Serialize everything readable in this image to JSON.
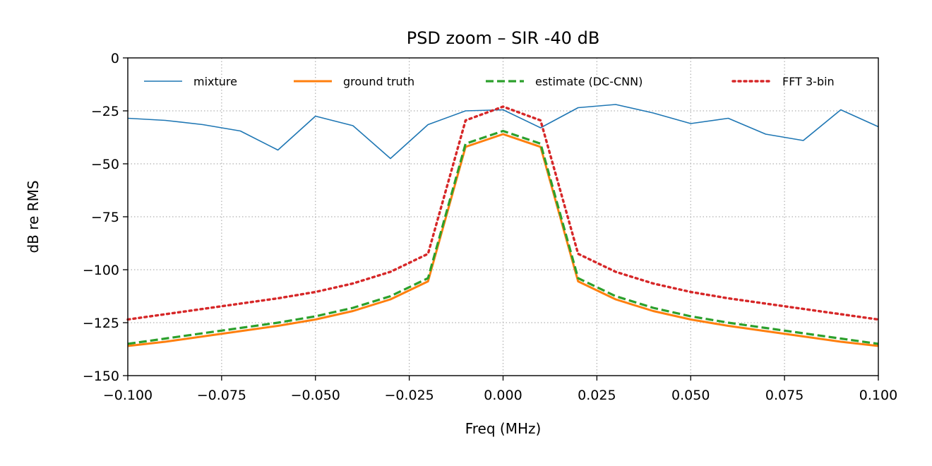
{
  "chart_data": {
    "type": "line",
    "title": "PSD zoom – SIR -40 dB",
    "xlabel": "Freq (MHz)",
    "ylabel": "dB re RMS",
    "xlim": [
      -0.1,
      0.1
    ],
    "ylim": [
      -150,
      0
    ],
    "x_ticks": [
      -0.1,
      -0.075,
      -0.05,
      -0.025,
      0.0,
      0.025,
      0.05,
      0.075,
      0.1
    ],
    "x_tick_labels": [
      "−0.100",
      "−0.075",
      "−0.050",
      "−0.025",
      "0.000",
      "0.025",
      "0.050",
      "0.075",
      "0.100"
    ],
    "y_ticks": [
      0,
      -25,
      -50,
      -75,
      -100,
      -125,
      -150
    ],
    "y_tick_labels": [
      "0",
      "−25",
      "−50",
      "−75",
      "−100",
      "−125",
      "−150"
    ],
    "grid": true,
    "legend_placement": "top (inside, single row)",
    "x": [
      -0.1,
      -0.09,
      -0.08,
      -0.07,
      -0.06,
      -0.05,
      -0.04,
      -0.03,
      -0.02,
      -0.01,
      0.0,
      0.01,
      0.02,
      0.03,
      0.04,
      0.05,
      0.06,
      0.07,
      0.08,
      0.09,
      0.1
    ],
    "series": [
      {
        "name": "mixture",
        "color": "#1f77b4",
        "style": "solid-thin",
        "values": [
          -28.5,
          -29.5,
          -31.5,
          -34.5,
          -43.5,
          -27.5,
          -32,
          -47.5,
          -31.5,
          -25,
          -24.5,
          -33,
          -23.5,
          -22,
          -26,
          -31,
          -28.5,
          -36,
          -39,
          -24.5,
          -32.5
        ]
      },
      {
        "name": "ground truth",
        "color": "#ff7f0e",
        "style": "solid",
        "values": [
          -136,
          -134,
          -131.5,
          -129,
          -126.5,
          -123.5,
          -119.5,
          -114,
          -105.5,
          -42,
          -36,
          -42,
          -105.5,
          -114,
          -119.5,
          -123.5,
          -126.5,
          -129,
          -131.5,
          -134,
          -136
        ]
      },
      {
        "name": "estimate (DC-CNN)",
        "color": "#2ca02c",
        "style": "dashed",
        "values": [
          -135,
          -132.5,
          -130,
          -127.5,
          -125,
          -122,
          -118,
          -112.5,
          -104,
          -40.5,
          -34.5,
          -40.5,
          -104,
          -112.5,
          -118,
          -122,
          -125,
          -127.5,
          -130,
          -132.5,
          -135
        ]
      },
      {
        "name": "FFT 3-bin",
        "color": "#d62728",
        "style": "dotted",
        "values": [
          -123.5,
          -121,
          -118.5,
          -116,
          -113.5,
          -110.5,
          -106.5,
          -101,
          -92.5,
          -29.5,
          -23,
          -29.5,
          -92.5,
          -101,
          -106.5,
          -110.5,
          -113.5,
          -116,
          -118.5,
          -121,
          -123.5
        ]
      }
    ]
  }
}
